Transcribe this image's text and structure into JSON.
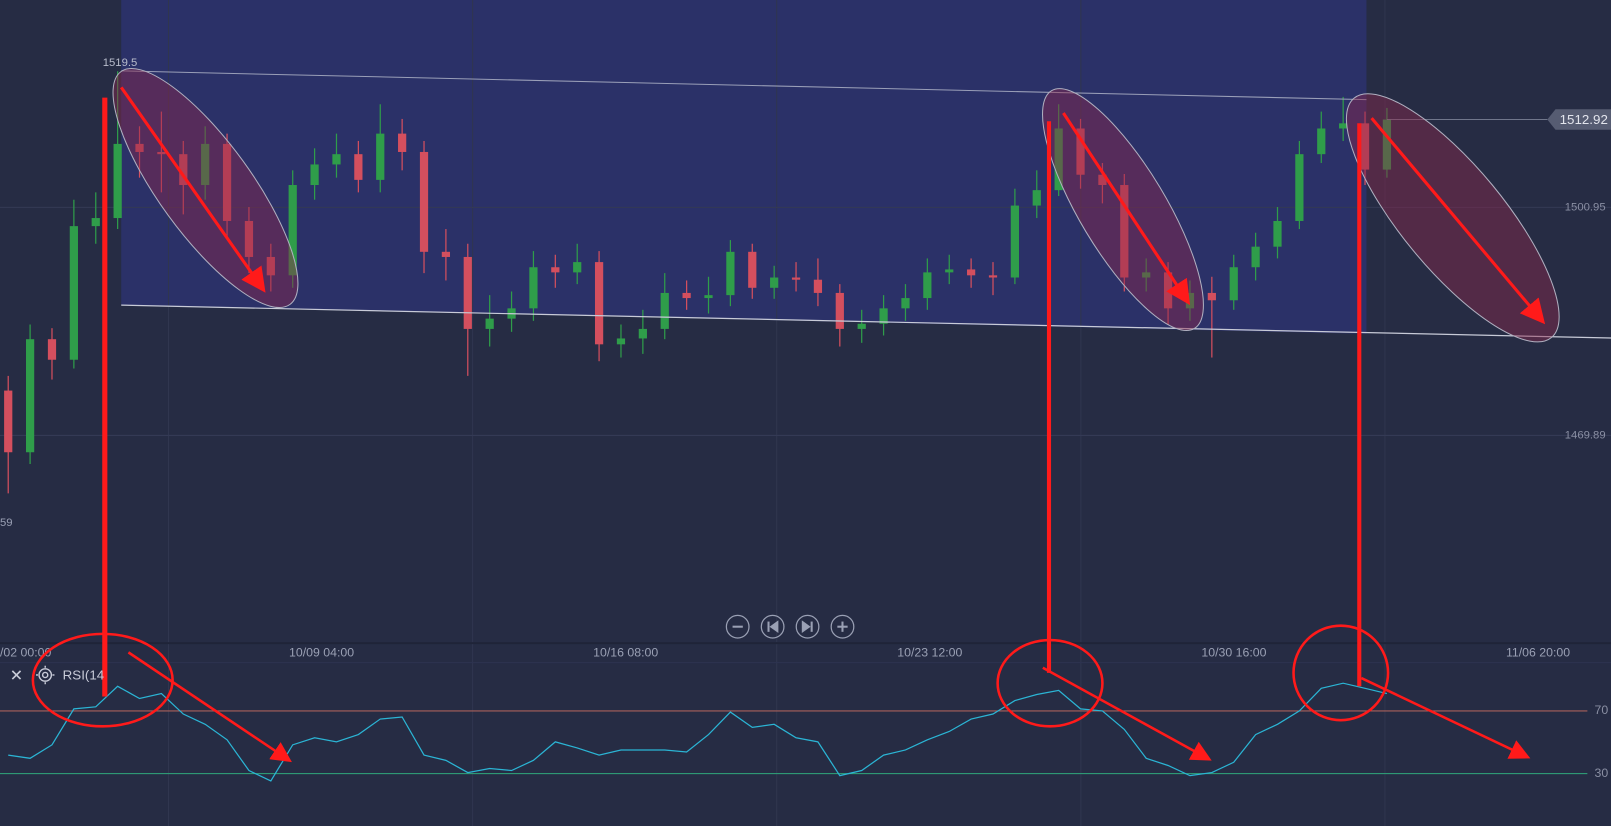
{
  "chart_data": [
    {
      "type": "candlestick",
      "open": [
        1476.0,
        1467.6,
        1483.0,
        1480.2,
        1498.4,
        1499.5,
        1509.6,
        1508.5,
        1508.2,
        1504.0,
        1509.6,
        1499.1,
        1494.2,
        1491.7,
        1504.0,
        1506.8,
        1508.2,
        1504.7,
        1511.0,
        1508.5,
        1494.9,
        1494.2,
        1484.4,
        1485.8,
        1487.2,
        1492.8,
        1492.1,
        1493.5,
        1482.3,
        1483.1,
        1484.4,
        1489.3,
        1488.6,
        1489.0,
        1494.9,
        1490.0,
        1491.4,
        1491.1,
        1489.3,
        1484.4,
        1485.1,
        1487.2,
        1488.6,
        1492.1,
        1492.5,
        1491.7,
        1491.4,
        1501.2,
        1503.3,
        1511.7,
        1505.4,
        1504.0,
        1491.4,
        1492.1,
        1487.2,
        1489.3,
        1488.3,
        1492.8,
        1495.6,
        1499.1,
        1508.2,
        1511.7,
        1512.4,
        1506.1
      ],
      "high": [
        1478.0,
        1485.0,
        1484.5,
        1502.0,
        1503.0,
        1519.5,
        1512.0,
        1514.0,
        1510.0,
        1512.0,
        1511.0,
        1501.0,
        1496.0,
        1506.0,
        1509.0,
        1511.0,
        1510.0,
        1515.0,
        1513.0,
        1510.0,
        1498.0,
        1496.0,
        1489.0,
        1489.5,
        1495.0,
        1494.5,
        1496.0,
        1495.0,
        1485.0,
        1487.0,
        1492.0,
        1491.0,
        1491.5,
        1496.5,
        1496.0,
        1493.0,
        1493.5,
        1494.0,
        1490.5,
        1487.0,
        1489.0,
        1490.5,
        1494.0,
        1494.5,
        1494.0,
        1493.5,
        1503.5,
        1506.0,
        1515.0,
        1513.0,
        1507.0,
        1505.5,
        1494.0,
        1493.5,
        1491.0,
        1491.5,
        1494.5,
        1497.5,
        1501.0,
        1510.0,
        1514.0,
        1516.0,
        1514.0,
        1514.5
      ],
      "low": [
        1462.0,
        1466.0,
        1477.5,
        1479.0,
        1496.0,
        1498.0,
        1505.0,
        1503.0,
        1500.0,
        1502.0,
        1497.0,
        1492.0,
        1489.5,
        1490.0,
        1502.0,
        1505.0,
        1503.0,
        1503.0,
        1506.0,
        1492.0,
        1491.0,
        1478.0,
        1482.0,
        1484.0,
        1485.5,
        1490.0,
        1490.5,
        1480.0,
        1480.5,
        1481.0,
        1483.0,
        1487.0,
        1486.5,
        1487.5,
        1488.5,
        1488.5,
        1489.5,
        1487.5,
        1482.0,
        1482.5,
        1483.5,
        1485.5,
        1487.0,
        1490.5,
        1490.0,
        1489.0,
        1490.5,
        1499.5,
        1502.5,
        1503.5,
        1501.5,
        1489.5,
        1489.5,
        1485.0,
        1485.5,
        1480.5,
        1487.0,
        1491.0,
        1494.0,
        1498.0,
        1507.0,
        1510.0,
        1504.0,
        1505.0
      ],
      "close": [
        1467.6,
        1483.0,
        1480.2,
        1498.4,
        1499.5,
        1509.6,
        1508.5,
        1508.2,
        1504.0,
        1509.6,
        1499.1,
        1494.2,
        1491.7,
        1504.0,
        1506.8,
        1508.2,
        1504.7,
        1511.0,
        1508.5,
        1494.9,
        1494.2,
        1484.4,
        1485.8,
        1487.2,
        1492.8,
        1492.1,
        1493.5,
        1482.3,
        1483.1,
        1484.4,
        1489.3,
        1488.6,
        1489.0,
        1494.9,
        1490.0,
        1491.4,
        1491.1,
        1489.3,
        1484.4,
        1485.1,
        1487.2,
        1488.6,
        1492.1,
        1492.5,
        1491.7,
        1491.4,
        1501.2,
        1503.3,
        1511.7,
        1505.4,
        1504.0,
        1491.4,
        1492.1,
        1487.2,
        1489.3,
        1488.3,
        1492.8,
        1495.6,
        1499.1,
        1508.2,
        1511.7,
        1512.4,
        1506.1,
        1512.92
      ],
      "up_color": "#2f9d4a",
      "down_color": "#d44f5e",
      "ylim": [
        1441.6,
        1529.2
      ],
      "yticks": [
        1500.95,
        1469.89
      ],
      "x_labels": [
        "/02 00:00",
        "10/09 04:00",
        "10/16 08:00",
        "10/23 12:00",
        "10/30 16:00",
        "11/06 20:00"
      ],
      "high_label": 1519.5,
      "last_price": 1512.92,
      "left_label": "59",
      "grid": true
    },
    {
      "type": "line",
      "name": "RSI(14",
      "color": "#2bb5d5",
      "values": [
        41.8,
        39.8,
        48.4,
        71.3,
        72.6,
        85.7,
        77.9,
        81.1,
        68.0,
        61.5,
        51.6,
        32.0,
        25.4,
        48.4,
        52.9,
        50.3,
        54.9,
        64.8,
        66.1,
        41.8,
        38.5,
        30.7,
        33.3,
        32.0,
        38.5,
        50.3,
        46.4,
        41.8,
        45.1,
        45.1,
        45.1,
        43.8,
        54.9,
        69.3,
        59.5,
        61.5,
        52.9,
        50.3,
        28.7,
        32.0,
        41.8,
        45.1,
        51.6,
        56.9,
        64.8,
        68.0,
        76.6,
        80.5,
        83.1,
        71.3,
        70.0,
        58.2,
        39.8,
        35.2,
        28.7,
        30.7,
        37.2,
        54.9,
        61.5,
        70.0,
        84.4,
        87.7,
        84.4,
        81.1
      ],
      "ylim": [
        -3.4,
        100.8
      ],
      "yticks": [
        70,
        30
      ],
      "level_colors": [
        "#a8605a",
        "#2fa77b"
      ]
    }
  ]
}
